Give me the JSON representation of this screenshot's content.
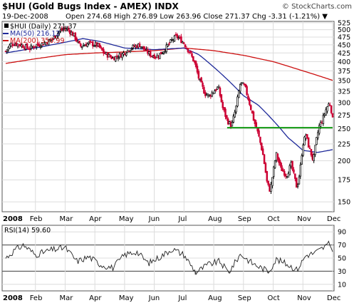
{
  "header": {
    "title": "$HUI (Gold Bugs Index - AMEX) INDX",
    "credit": "© StockCharts.com",
    "date": "19-Dec-2008",
    "quote": "Open 274.68  High 276.89  Low 263.96  Close 271.37  Chg -3.31 (-1.21%) ▼"
  },
  "legend": {
    "price": "$HUI (Daily) 271.37",
    "ma50": "MA(50) 216.12",
    "ma200": "MA(200) 350.99"
  },
  "rsi_label": "RSI(14) 59.60",
  "colors": {
    "price_up": "#000000",
    "price_down": "#cc0033",
    "ma50": "#1f2a9a",
    "ma200": "#cc1111",
    "support": "#119911",
    "rsi_line": "#222222",
    "rsi_fill": "#999999",
    "grid": "#dcdcdc"
  },
  "chart_data": [
    {
      "type": "candlestick",
      "title": "$HUI (Gold Bugs Index - AMEX) INDX",
      "x_labels": [
        "2008",
        "Feb",
        "Mar",
        "Apr",
        "May",
        "Jun",
        "Jul",
        "Aug",
        "Sep",
        "Oct",
        "Nov",
        "Dec"
      ],
      "y_scale": "log",
      "ylim": [
        140,
        530
      ],
      "y_ticks": [
        150,
        175,
        200,
        225,
        250,
        275,
        300,
        325,
        350,
        375,
        400,
        425,
        450,
        475,
        500,
        525
      ],
      "close_anchors": [
        {
          "month": 0.0,
          "close": 430
        },
        {
          "month": 0.2,
          "close": 455
        },
        {
          "month": 0.5,
          "close": 450
        },
        {
          "month": 0.8,
          "close": 438
        },
        {
          "month": 1.0,
          "close": 448
        },
        {
          "month": 1.3,
          "close": 455
        },
        {
          "month": 1.6,
          "close": 470
        },
        {
          "month": 1.8,
          "close": 495
        },
        {
          "month": 2.05,
          "close": 505
        },
        {
          "month": 2.3,
          "close": 480
        },
        {
          "month": 2.5,
          "close": 445
        },
        {
          "month": 2.8,
          "close": 455
        },
        {
          "month": 3.1,
          "close": 448
        },
        {
          "month": 3.3,
          "close": 425
        },
        {
          "month": 3.6,
          "close": 410
        },
        {
          "month": 3.9,
          "close": 420
        },
        {
          "month": 4.2,
          "close": 440
        },
        {
          "month": 4.5,
          "close": 450
        },
        {
          "month": 4.7,
          "close": 432
        },
        {
          "month": 4.9,
          "close": 418
        },
        {
          "month": 5.1,
          "close": 415
        },
        {
          "month": 5.3,
          "close": 430
        },
        {
          "month": 5.6,
          "close": 465
        },
        {
          "month": 5.75,
          "close": 478
        },
        {
          "month": 6.0,
          "close": 455
        },
        {
          "month": 6.2,
          "close": 425
        },
        {
          "month": 6.35,
          "close": 398
        },
        {
          "month": 6.5,
          "close": 355
        },
        {
          "month": 6.7,
          "close": 320
        },
        {
          "month": 6.85,
          "close": 315
        },
        {
          "month": 7.0,
          "close": 325
        },
        {
          "month": 7.15,
          "close": 335
        },
        {
          "month": 7.3,
          "close": 290
        },
        {
          "month": 7.45,
          "close": 265
        },
        {
          "month": 7.6,
          "close": 255
        },
        {
          "month": 7.75,
          "close": 290
        },
        {
          "month": 7.9,
          "close": 345
        },
        {
          "month": 8.05,
          "close": 335
        },
        {
          "month": 8.2,
          "close": 300
        },
        {
          "month": 8.35,
          "close": 265
        },
        {
          "month": 8.5,
          "close": 240
        },
        {
          "month": 8.65,
          "close": 210
        },
        {
          "month": 8.8,
          "close": 170
        },
        {
          "month": 8.9,
          "close": 162
        },
        {
          "month": 9.0,
          "close": 185
        },
        {
          "month": 9.1,
          "close": 210
        },
        {
          "month": 9.25,
          "close": 190
        },
        {
          "month": 9.45,
          "close": 180
        },
        {
          "month": 9.6,
          "close": 195
        },
        {
          "month": 9.8,
          "close": 165
        },
        {
          "month": 9.9,
          "close": 185
        },
        {
          "month": 10.0,
          "close": 225
        },
        {
          "month": 10.1,
          "close": 240
        },
        {
          "month": 10.2,
          "close": 220
        },
        {
          "month": 10.35,
          "close": 200
        },
        {
          "month": 10.45,
          "close": 230
        },
        {
          "month": 10.55,
          "close": 255
        },
        {
          "month": 10.65,
          "close": 265
        },
        {
          "month": 10.8,
          "close": 290
        },
        {
          "month": 10.9,
          "close": 300
        },
        {
          "month": 11.0,
          "close": 271.37
        }
      ],
      "ma50": {
        "name": "MA(50)",
        "last": 216.12,
        "values": [
          {
            "month": 0.0,
            "value": 425
          },
          {
            "month": 1.0,
            "value": 440
          },
          {
            "month": 2.0,
            "value": 458
          },
          {
            "month": 2.6,
            "value": 470
          },
          {
            "month": 3.2,
            "value": 460
          },
          {
            "month": 4.0,
            "value": 440
          },
          {
            "month": 5.0,
            "value": 435
          },
          {
            "month": 6.0,
            "value": 440
          },
          {
            "month": 6.5,
            "value": 420
          },
          {
            "month": 7.0,
            "value": 385
          },
          {
            "month": 7.5,
            "value": 350
          },
          {
            "month": 8.0,
            "value": 315
          },
          {
            "month": 8.5,
            "value": 295
          },
          {
            "month": 9.0,
            "value": 265
          },
          {
            "month": 9.5,
            "value": 235
          },
          {
            "month": 10.0,
            "value": 215
          },
          {
            "month": 10.5,
            "value": 212
          },
          {
            "month": 11.0,
            "value": 216.12
          }
        ]
      },
      "ma200": {
        "name": "MA(200)",
        "last": 350.99,
        "values": [
          {
            "month": 0.0,
            "value": 395
          },
          {
            "month": 1.0,
            "value": 408
          },
          {
            "month": 2.0,
            "value": 420
          },
          {
            "month": 3.0,
            "value": 425
          },
          {
            "month": 4.0,
            "value": 428
          },
          {
            "month": 5.0,
            "value": 432
          },
          {
            "month": 6.0,
            "value": 440
          },
          {
            "month": 7.0,
            "value": 432
          },
          {
            "month": 8.0,
            "value": 418
          },
          {
            "month": 9.0,
            "value": 400
          },
          {
            "month": 10.0,
            "value": 375
          },
          {
            "month": 11.0,
            "value": 350.99
          }
        ]
      },
      "support_line": {
        "value": 252,
        "from_month": 7.45,
        "to_month": 11.0
      }
    },
    {
      "type": "line",
      "title": "RSI(14) 59.60",
      "ylim": [
        0,
        100
      ],
      "y_ticks": [
        10,
        30,
        50,
        70,
        90
      ],
      "reference_lines": [
        30,
        70
      ],
      "x_labels": [
        "2008",
        "Feb",
        "Mar",
        "Apr",
        "May",
        "Jun",
        "Jul",
        "Aug",
        "Sep",
        "Oct",
        "Nov",
        "Dec"
      ],
      "rsi_anchors": [
        {
          "month": 0.0,
          "value": 50
        },
        {
          "month": 0.3,
          "value": 62
        },
        {
          "month": 0.6,
          "value": 70
        },
        {
          "month": 1.0,
          "value": 55
        },
        {
          "month": 1.5,
          "value": 62
        },
        {
          "month": 2.0,
          "value": 66
        },
        {
          "month": 2.4,
          "value": 45
        },
        {
          "month": 2.8,
          "value": 52
        },
        {
          "month": 3.2,
          "value": 40
        },
        {
          "month": 3.6,
          "value": 35
        },
        {
          "month": 4.0,
          "value": 55
        },
        {
          "month": 4.4,
          "value": 60
        },
        {
          "month": 4.8,
          "value": 42
        },
        {
          "month": 5.2,
          "value": 52
        },
        {
          "month": 5.6,
          "value": 64
        },
        {
          "month": 6.0,
          "value": 55
        },
        {
          "month": 6.4,
          "value": 28
        },
        {
          "month": 6.8,
          "value": 40
        },
        {
          "month": 7.2,
          "value": 45
        },
        {
          "month": 7.5,
          "value": 28
        },
        {
          "month": 7.9,
          "value": 56
        },
        {
          "month": 8.3,
          "value": 42
        },
        {
          "month": 8.6,
          "value": 35
        },
        {
          "month": 8.85,
          "value": 30
        },
        {
          "month": 9.1,
          "value": 48
        },
        {
          "month": 9.5,
          "value": 40
        },
        {
          "month": 9.8,
          "value": 32
        },
        {
          "month": 10.1,
          "value": 54
        },
        {
          "month": 10.4,
          "value": 58
        },
        {
          "month": 10.7,
          "value": 66
        },
        {
          "month": 10.9,
          "value": 72
        },
        {
          "month": 11.0,
          "value": 59.6
        }
      ]
    }
  ]
}
